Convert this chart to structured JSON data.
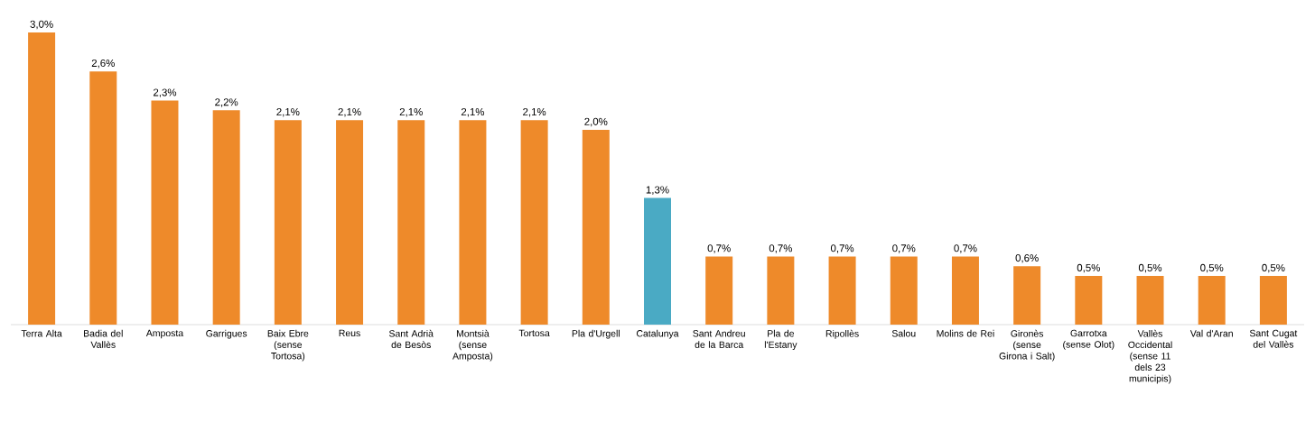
{
  "chart_data": {
    "type": "bar",
    "categories": [
      "Terra Alta",
      "Badia del Vallès",
      "Amposta",
      "Garrigues",
      "Baix Ebre (sense Tortosa)",
      "Reus",
      "Sant Adrià de Besòs",
      "Montsià (sense Amposta)",
      "Tortosa",
      "Pla d'Urgell",
      "Catalunya",
      "Sant Andreu de la Barca",
      "Pla de l'Estany",
      "Ripollès",
      "Salou",
      "Molins de Rei",
      "Gironès (sense Girona i Salt)",
      "Garrotxa (sense Olot)",
      "Vallès Occidental (sense 11 dels 23 municipis)",
      "Val d'Aran",
      "Sant Cugat del Vallès"
    ],
    "values": [
      3.0,
      2.6,
      2.3,
      2.2,
      2.1,
      2.1,
      2.1,
      2.1,
      2.1,
      2.0,
      1.3,
      0.7,
      0.7,
      0.7,
      0.7,
      0.7,
      0.6,
      0.5,
      0.5,
      0.5,
      0.5
    ],
    "value_labels": [
      "3,0%",
      "2,6%",
      "2,3%",
      "2,2%",
      "2,1%",
      "2,1%",
      "2,1%",
      "2,1%",
      "2,1%",
      "2,0%",
      "1,3%",
      "0,7%",
      "0,7%",
      "0,7%",
      "0,7%",
      "0,7%",
      "0,6%",
      "0,5%",
      "0,5%",
      "0,5%",
      "0,5%"
    ],
    "colors": [
      "#ee8a2a",
      "#ee8a2a",
      "#ee8a2a",
      "#ee8a2a",
      "#ee8a2a",
      "#ee8a2a",
      "#ee8a2a",
      "#ee8a2a",
      "#ee8a2a",
      "#ee8a2a",
      "#4aaac4",
      "#ee8a2a",
      "#ee8a2a",
      "#ee8a2a",
      "#ee8a2a",
      "#ee8a2a",
      "#ee8a2a",
      "#ee8a2a",
      "#ee8a2a",
      "#ee8a2a",
      "#ee8a2a"
    ]
  }
}
